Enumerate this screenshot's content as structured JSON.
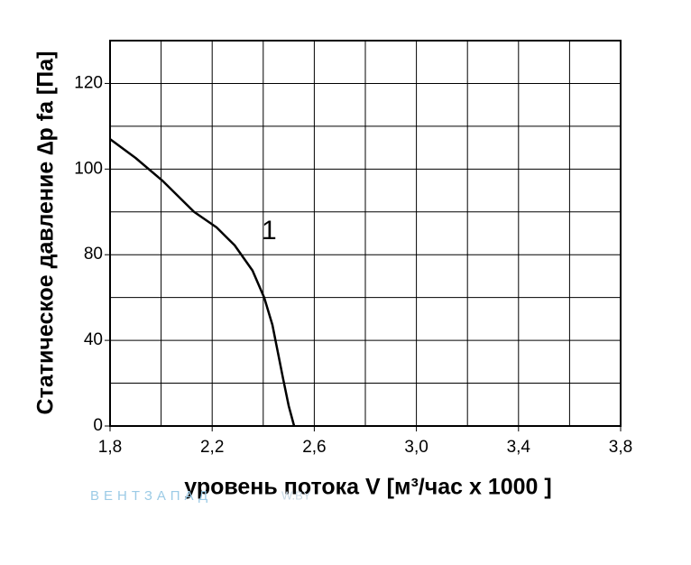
{
  "chart_data": {
    "type": "line",
    "y_label": "Статическое давление  ∆p fa [Па]",
    "x_label": "уровень потока  V [м³/час x 1000 ]",
    "watermark": [
      "ВЕНТЗАПАД",
      "W.BY"
    ],
    "series": [
      {
        "name": "1",
        "color": "#000000",
        "x": [
          1.8,
          1.9,
          2.005,
          2.129,
          2.217,
          2.288,
          2.358,
          2.404,
          2.436,
          2.457,
          2.478,
          2.5,
          2.521
        ],
        "values": [
          107,
          102.6,
          97.3,
          90,
          86.4,
          82.2,
          72.6,
          59.9,
          47.2,
          34.6,
          22,
          9.3,
          0
        ]
      }
    ],
    "xlim": [
      1.8,
      3.8
    ],
    "xticks": [
      {
        "value": 1.8,
        "label": "1,8"
      },
      {
        "value": 2.2,
        "label": "2,2"
      },
      {
        "value": 2.6,
        "label": "2,6"
      },
      {
        "value": 3.0,
        "label": "3,0"
      },
      {
        "value": 3.4,
        "label": "3,4"
      },
      {
        "value": 3.8,
        "label": "3,8"
      }
    ],
    "ylim": [
      0,
      130
    ],
    "yticks": [
      0,
      40,
      80,
      100,
      120
    ],
    "grid": true
  }
}
